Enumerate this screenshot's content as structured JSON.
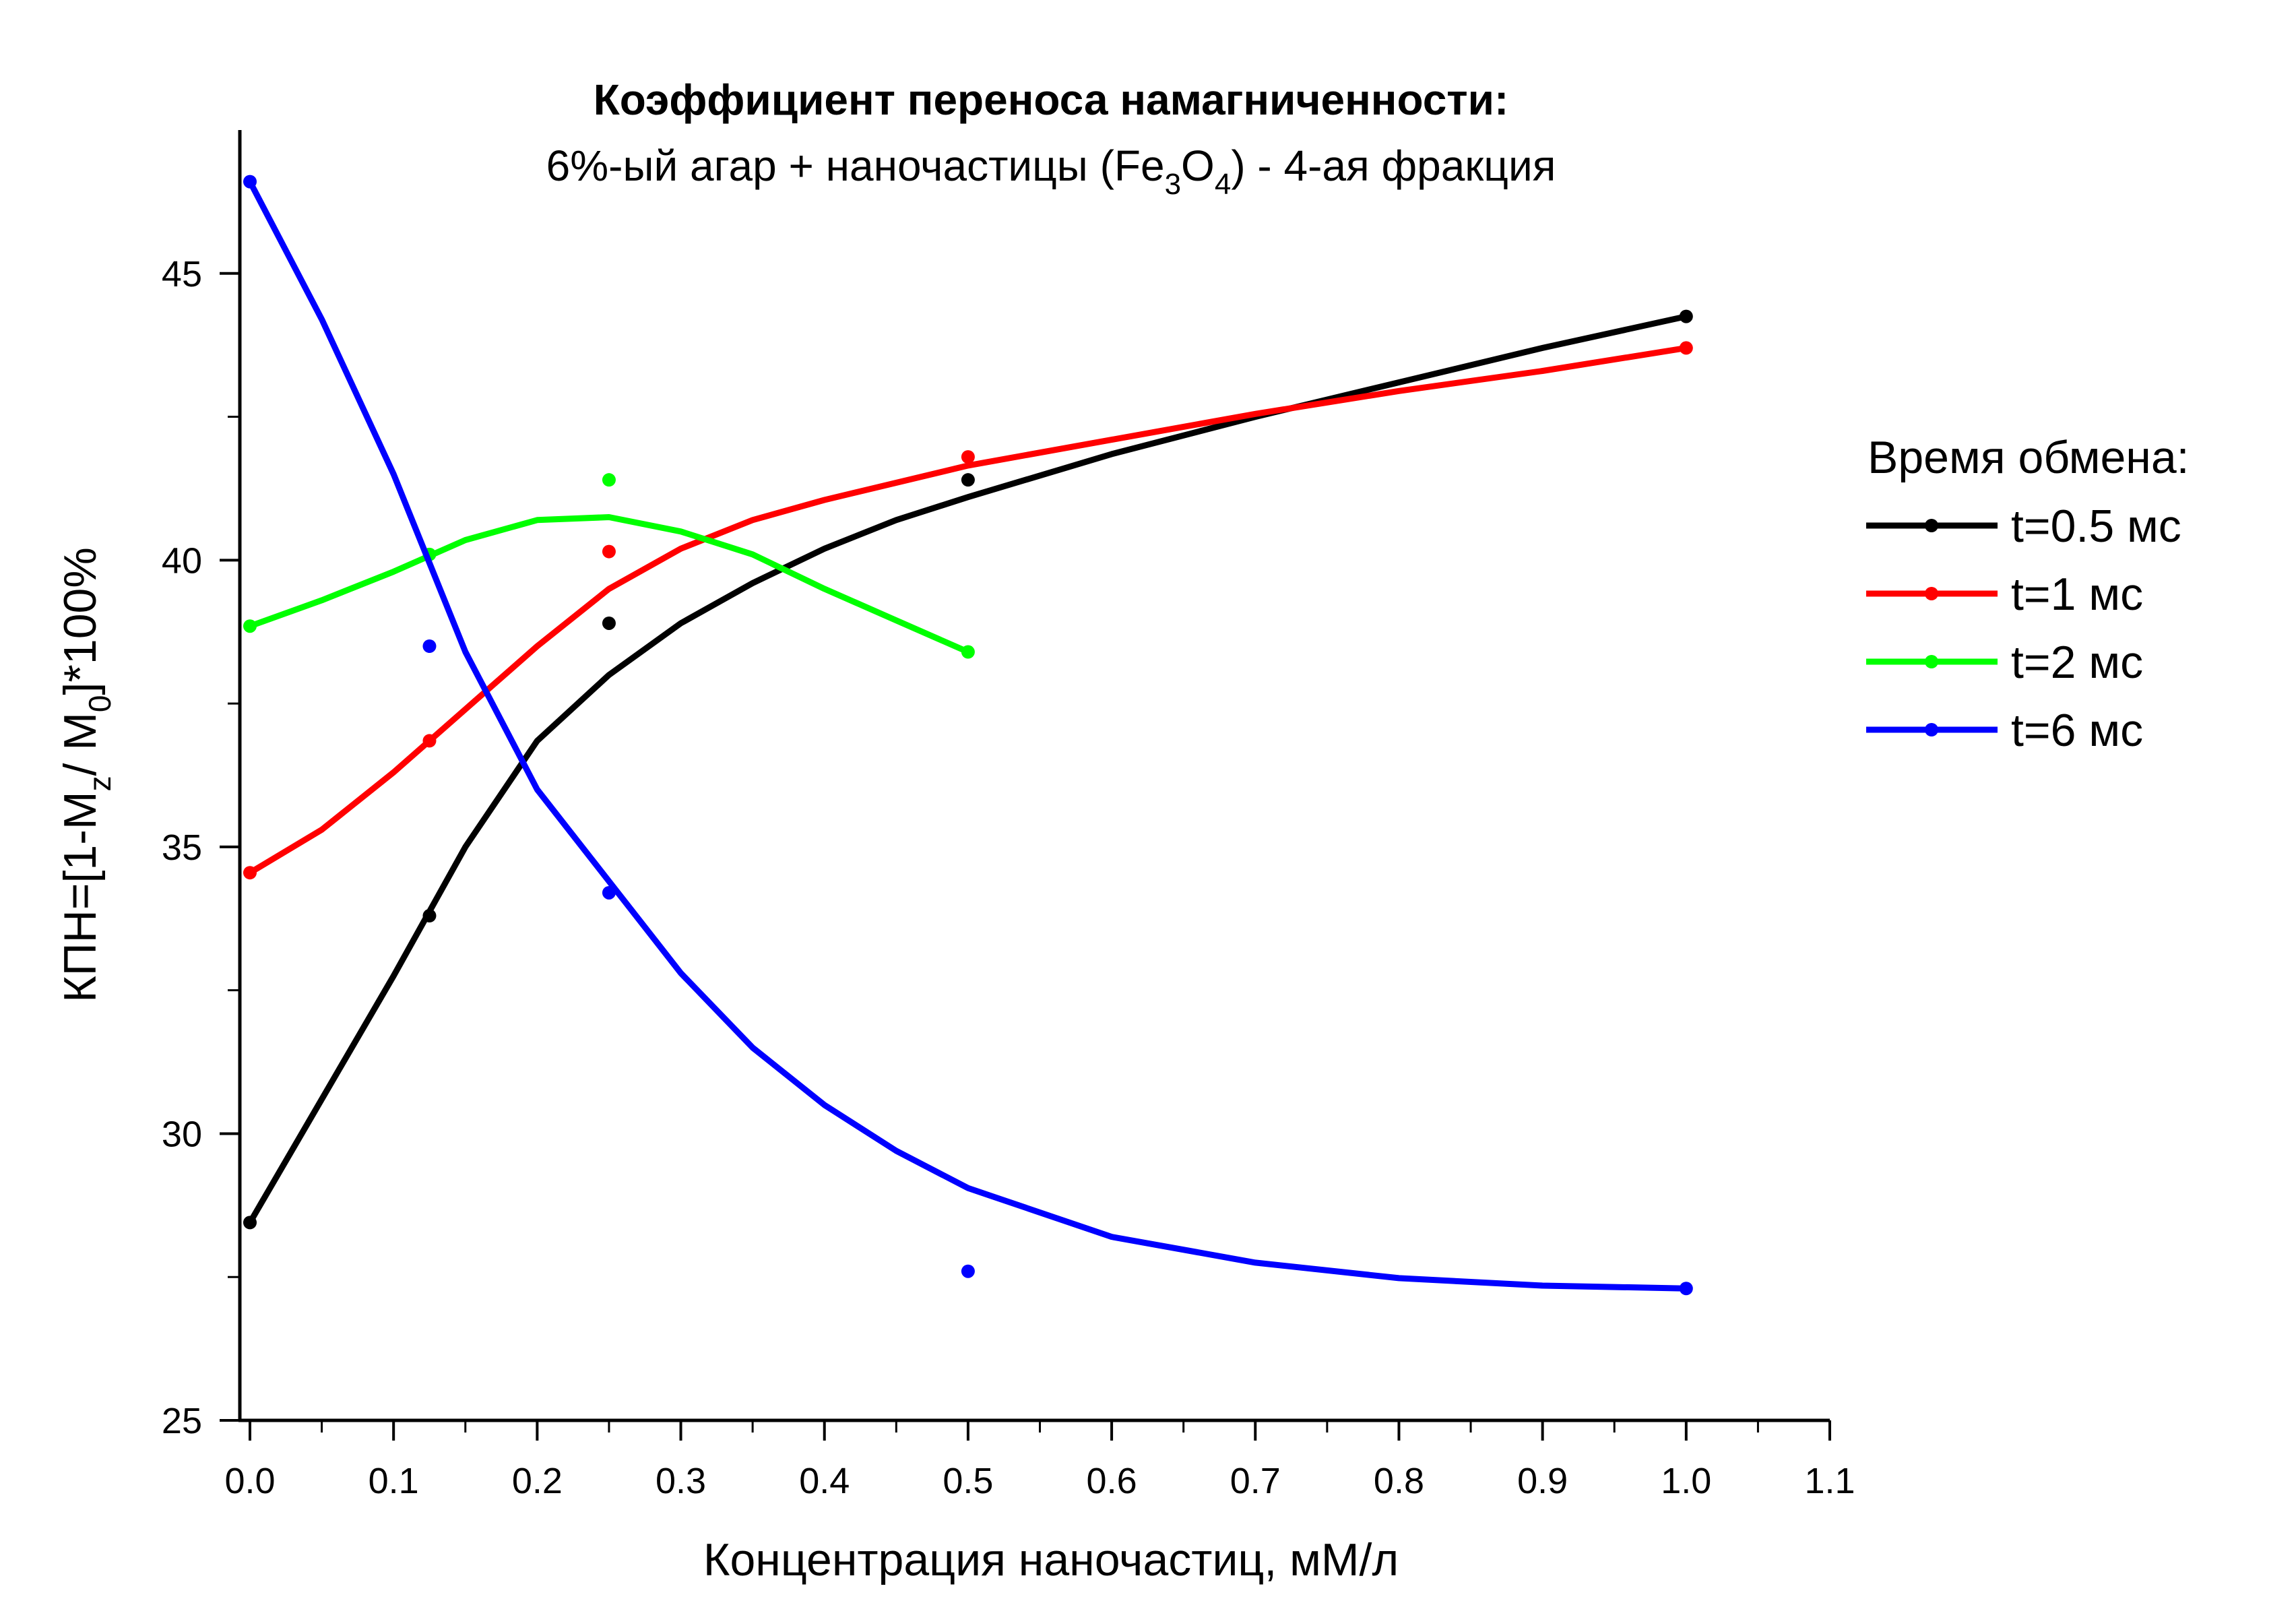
{
  "chart_data": {
    "type": "line",
    "title": "Коэффициент переноса намагниченности:",
    "subtitle": {
      "pre": "6%-ый агар + наночастицы (Fe",
      "sub1": "3",
      "mid": "O",
      "sub2": "4",
      "post": ") - 4-ая фракция"
    },
    "xlabel": "Концентрация наночастиц, мМ/л",
    "ylabel": {
      "pre": "КПН=[1-M",
      "sub1": "z",
      "mid": "/ M",
      "sub2": "0",
      "post": "]*100%"
    },
    "xlim": [
      -0.02,
      1.1
    ],
    "ylim": [
      25,
      47.5
    ],
    "xticks": [
      "0.0",
      "0.1",
      "0.2",
      "0.3",
      "0.4",
      "0.5",
      "0.6",
      "0.7",
      "0.8",
      "0.9",
      "1.0",
      "1.1"
    ],
    "yticks": [
      "25",
      "30",
      "35",
      "40",
      "45"
    ],
    "grid": false,
    "legend_title": "Время обмена:",
    "legend_position": "right",
    "series": [
      {
        "name": "t=0.5 мс",
        "color": "#000000",
        "points": [
          [
            0.0,
            28.45
          ],
          [
            0.125,
            33.8
          ],
          [
            0.25,
            38.9
          ],
          [
            0.5,
            41.4
          ],
          [
            1.0,
            44.25
          ]
        ],
        "fit": [
          [
            0.0,
            28.45
          ],
          [
            0.05,
            30.6
          ],
          [
            0.1,
            32.75
          ],
          [
            0.15,
            35.0
          ],
          [
            0.2,
            36.85
          ],
          [
            0.25,
            38.0
          ],
          [
            0.3,
            38.9
          ],
          [
            0.35,
            39.6
          ],
          [
            0.4,
            40.2
          ],
          [
            0.45,
            40.7
          ],
          [
            0.5,
            41.1
          ],
          [
            0.6,
            41.85
          ],
          [
            0.7,
            42.5
          ],
          [
            0.8,
            43.1
          ],
          [
            0.9,
            43.7
          ],
          [
            1.0,
            44.25
          ]
        ]
      },
      {
        "name": "t=1 мс",
        "color": "#ff0000",
        "points": [
          [
            0.0,
            34.55
          ],
          [
            0.125,
            36.85
          ],
          [
            0.25,
            40.15
          ],
          [
            0.5,
            41.8
          ],
          [
            1.0,
            43.7
          ]
        ],
        "fit": [
          [
            0.0,
            34.55
          ],
          [
            0.05,
            35.3
          ],
          [
            0.1,
            36.3
          ],
          [
            0.15,
            37.4
          ],
          [
            0.2,
            38.5
          ],
          [
            0.25,
            39.5
          ],
          [
            0.3,
            40.2
          ],
          [
            0.35,
            40.7
          ],
          [
            0.4,
            41.05
          ],
          [
            0.5,
            41.65
          ],
          [
            0.6,
            42.1
          ],
          [
            0.7,
            42.55
          ],
          [
            0.8,
            42.95
          ],
          [
            0.9,
            43.3
          ],
          [
            1.0,
            43.7
          ]
        ]
      },
      {
        "name": "t=2 мс",
        "color": "#00ff00",
        "points": [
          [
            0.0,
            38.85
          ],
          [
            0.125,
            40.1
          ],
          [
            0.25,
            41.4
          ],
          [
            0.5,
            38.4
          ]
        ],
        "fit": [
          [
            0.0,
            38.85
          ],
          [
            0.05,
            39.3
          ],
          [
            0.1,
            39.8
          ],
          [
            0.15,
            40.35
          ],
          [
            0.2,
            40.7
          ],
          [
            0.25,
            40.75
          ],
          [
            0.3,
            40.5
          ],
          [
            0.35,
            40.1
          ],
          [
            0.4,
            39.5
          ],
          [
            0.45,
            38.95
          ],
          [
            0.5,
            38.4
          ]
        ]
      },
      {
        "name": "t=6 мс",
        "color": "#0000ff",
        "points": [
          [
            0.0,
            46.6
          ],
          [
            0.125,
            38.5
          ],
          [
            0.25,
            34.2
          ],
          [
            0.5,
            27.6
          ],
          [
            1.0,
            27.3
          ]
        ],
        "fit": [
          [
            0.0,
            46.6
          ],
          [
            0.05,
            44.2
          ],
          [
            0.1,
            41.5
          ],
          [
            0.15,
            38.4
          ],
          [
            0.2,
            36.0
          ],
          [
            0.25,
            34.4
          ],
          [
            0.3,
            32.8
          ],
          [
            0.35,
            31.5
          ],
          [
            0.4,
            30.5
          ],
          [
            0.45,
            29.7
          ],
          [
            0.5,
            29.05
          ],
          [
            0.6,
            28.2
          ],
          [
            0.7,
            27.75
          ],
          [
            0.8,
            27.48
          ],
          [
            0.9,
            27.35
          ],
          [
            1.0,
            27.3
          ]
        ]
      }
    ]
  }
}
